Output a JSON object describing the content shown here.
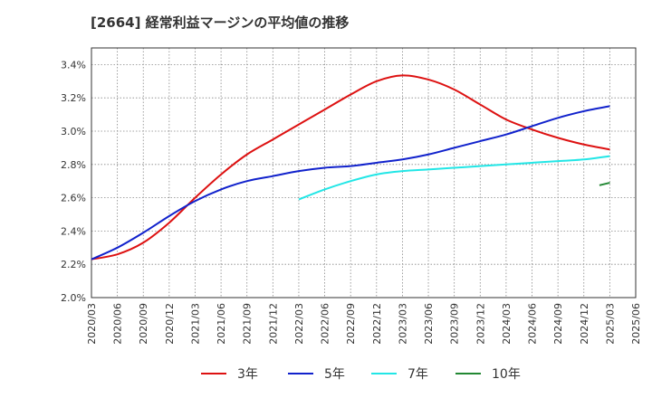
{
  "chart_data": {
    "type": "line",
    "title": "[2664]  経常利益マージンの平均値の推移",
    "xlabel": "",
    "ylabel": "",
    "x_ticks": [
      "2020/03",
      "2020/06",
      "2020/09",
      "2020/12",
      "2021/03",
      "2021/06",
      "2021/09",
      "2021/12",
      "2022/03",
      "2022/06",
      "2022/09",
      "2022/12",
      "2023/03",
      "2023/06",
      "2023/09",
      "2023/12",
      "2024/03",
      "2024/06",
      "2024/09",
      "2024/12",
      "2025/03",
      "2025/06"
    ],
    "y_ticks": [
      "2.0%",
      "2.2%",
      "2.4%",
      "2.6%",
      "2.8%",
      "3.0%",
      "3.2%",
      "3.4%"
    ],
    "ylim": [
      2.0,
      3.5
    ],
    "grid": true,
    "legend_position": "bottom",
    "series": [
      {
        "name": "3年",
        "color": "#dd1111",
        "values": [
          2.23,
          2.26,
          2.33,
          2.45,
          2.6,
          2.74,
          2.86,
          2.95,
          3.04,
          3.13,
          3.22,
          3.3,
          3.335,
          3.31,
          3.25,
          3.16,
          3.07,
          3.01,
          2.96,
          2.92,
          2.89,
          null
        ]
      },
      {
        "name": "5年",
        "color": "#1122cc",
        "values": [
          2.23,
          2.3,
          2.39,
          2.49,
          2.58,
          2.65,
          2.7,
          2.73,
          2.76,
          2.78,
          2.79,
          2.81,
          2.83,
          2.86,
          2.9,
          2.94,
          2.98,
          3.03,
          3.08,
          3.12,
          3.15,
          null
        ]
      },
      {
        "name": "7年",
        "color": "#22e6e6",
        "values": [
          null,
          null,
          null,
          null,
          null,
          null,
          null,
          null,
          2.59,
          2.65,
          2.7,
          2.74,
          2.76,
          2.77,
          2.78,
          2.79,
          2.8,
          2.81,
          2.82,
          2.83,
          2.85,
          null
        ]
      },
      {
        "name": "10年",
        "color": "#228833",
        "values": [
          null,
          null,
          null,
          null,
          null,
          null,
          null,
          null,
          null,
          null,
          null,
          null,
          null,
          null,
          null,
          null,
          null,
          null,
          null,
          null,
          2.69,
          null
        ],
        "extra_points": [
          {
            "index": 19.6,
            "value": 2.675
          }
        ]
      }
    ]
  }
}
